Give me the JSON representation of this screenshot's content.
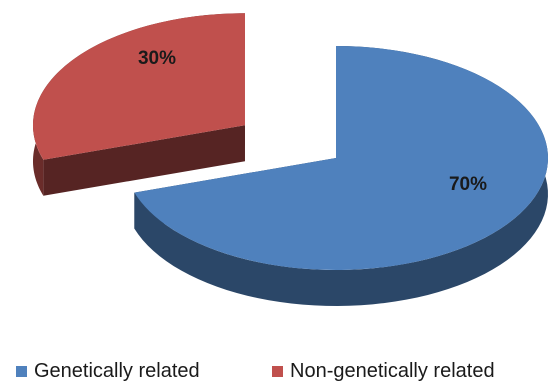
{
  "chart_data": {
    "type": "pie",
    "title": "",
    "categories": [
      "Genetically related",
      "Non-genetically related"
    ],
    "values": [
      70,
      30
    ],
    "value_labels": [
      "70%",
      "30%"
    ],
    "colors": [
      "#4F81BD",
      "#C0504D"
    ],
    "style": "3d-exploded",
    "legend_placement": "bottom"
  }
}
